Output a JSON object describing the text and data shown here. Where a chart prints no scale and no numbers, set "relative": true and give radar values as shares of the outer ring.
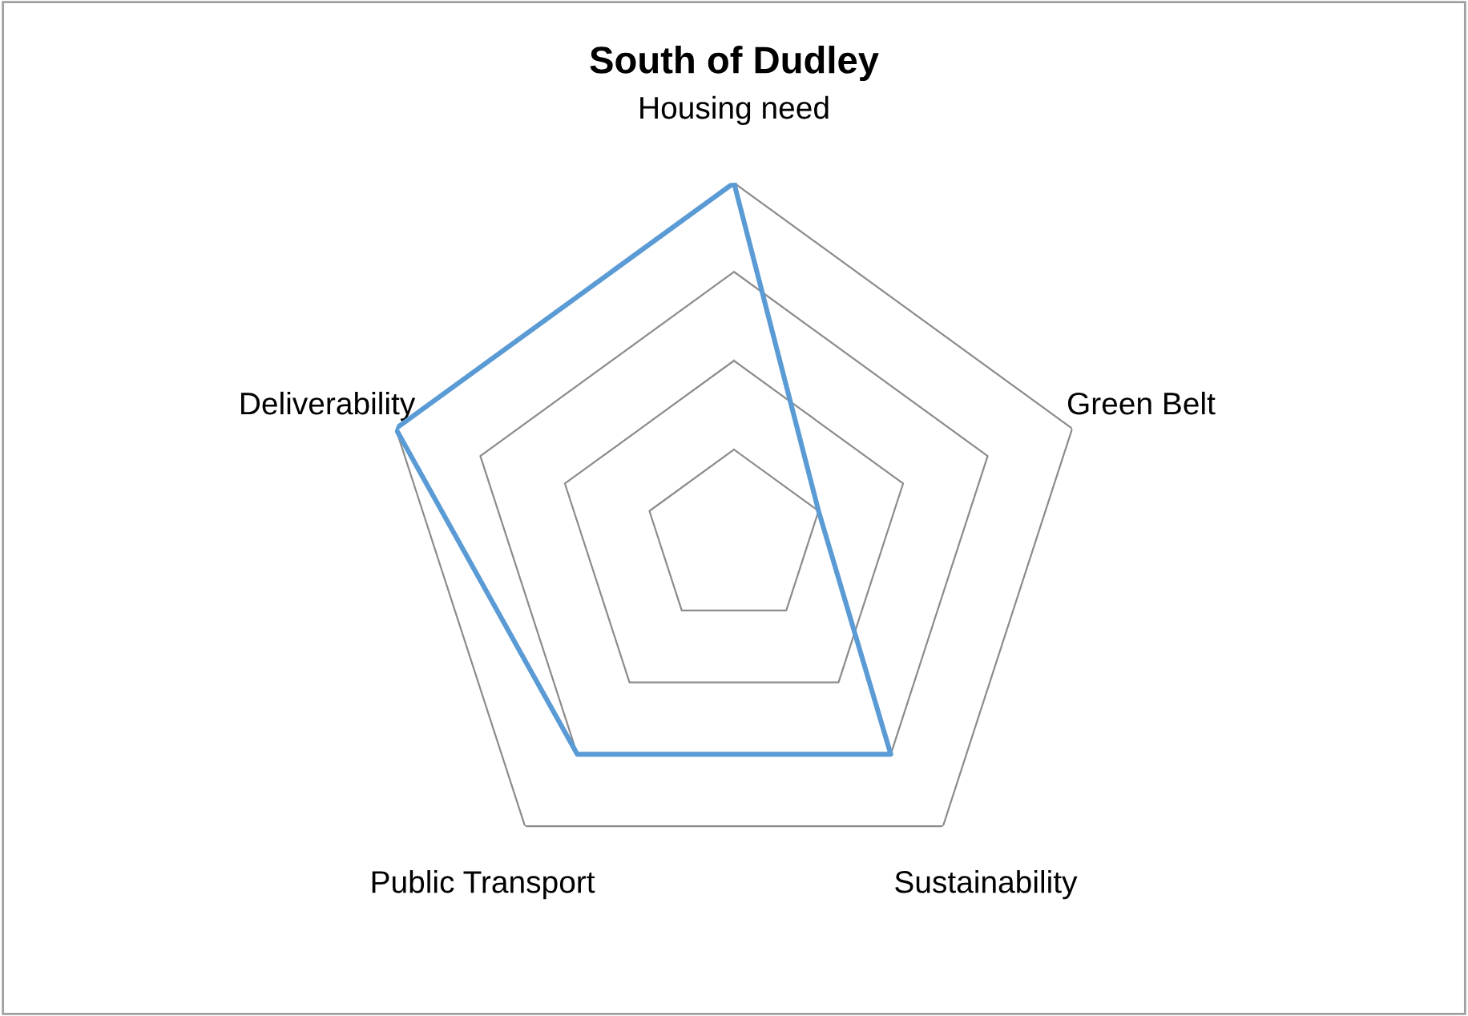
{
  "chart_data": {
    "type": "radar",
    "title": "South of Dudley",
    "relative": true,
    "grid": true,
    "categories": [
      "Housing need",
      "Green Belt",
      "Sustainability",
      "Public Transport",
      "Deliverability"
    ],
    "series": [
      {
        "color": "#5b9bd5",
        "values": [
          1,
          0.25,
          0.75,
          0.75,
          1
        ]
      }
    ]
  }
}
